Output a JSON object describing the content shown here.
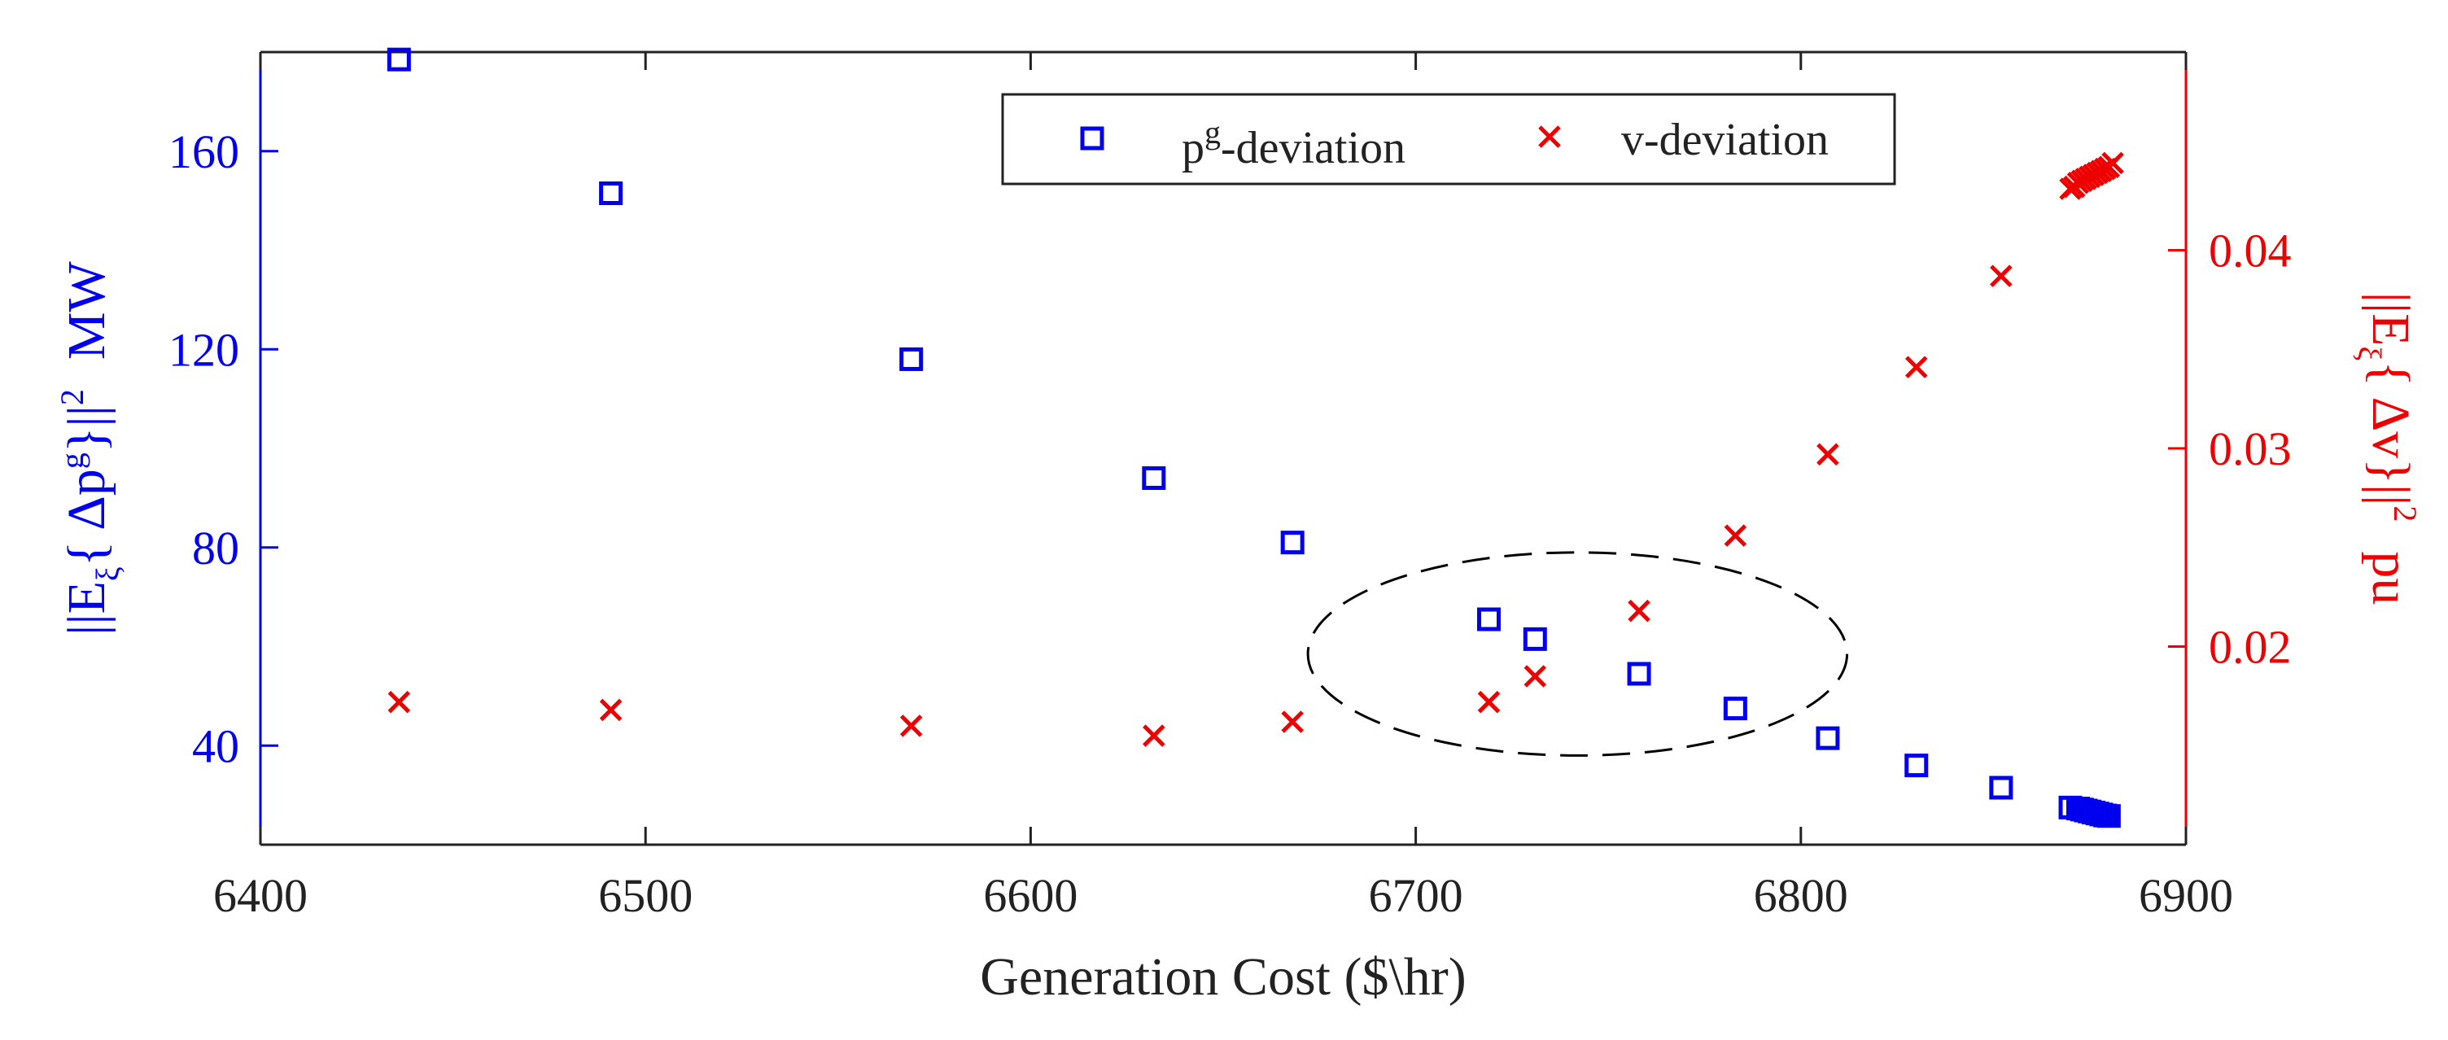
{
  "chart_data": {
    "type": "scatter",
    "xlabel": "Generation Cost ($\\hr)",
    "ylabel_left": {
      "prefix": "||E",
      "subscript": "ξ",
      "brace_open": "{ Δp",
      "superscript": "g",
      "brace_close": "}||",
      "power": "2",
      "unit": "MW"
    },
    "ylabel_right": {
      "prefix": "||E",
      "subscript": "ξ",
      "body": "{ Δv}||",
      "power": "2",
      "unit": "pu"
    },
    "xlim": [
      6400,
      6900
    ],
    "ylim_left": [
      20,
      180
    ],
    "ylim_right": [
      0.01,
      0.05
    ],
    "xticks": [
      6400,
      6500,
      6600,
      6700,
      6800,
      6900
    ],
    "xtick_labels": [
      "6400",
      "6500",
      "6600",
      "6700",
      "6800",
      "6900"
    ],
    "yticks_left": [
      40,
      80,
      120,
      160
    ],
    "ytick_labels_left": [
      "40",
      "80",
      "120",
      "160"
    ],
    "yticks_right": [
      0.02,
      0.03,
      0.04
    ],
    "ytick_labels_right": [
      "0.02",
      "0.03",
      "0.04"
    ],
    "grid": false,
    "legend_position": "top-right",
    "colors": {
      "pg": "#0000ee",
      "v": "#ee0000",
      "axis": "#222222",
      "annotation": "#000000"
    },
    "series": [
      {
        "name": "p^g-deviation",
        "legend_main": "p",
        "legend_sup": "g",
        "legend_rest": "-deviation",
        "marker": "square",
        "axis": "left",
        "x": [
          6436,
          6491,
          6569,
          6632,
          6668,
          6719,
          6731,
          6758,
          6783,
          6807,
          6830,
          6852,
          6870,
          6872,
          6873,
          6874,
          6875,
          6876,
          6877,
          6878,
          6879,
          6880
        ],
        "y": [
          178.5,
          151.5,
          118,
          94,
          81,
          65.5,
          61.5,
          54.5,
          47.5,
          41.5,
          36,
          31.5,
          27.5,
          27.3,
          27.1,
          26.9,
          26.7,
          26.5,
          26.3,
          26.1,
          25.9,
          25.8
        ]
      },
      {
        "name": "v-deviation",
        "legend_label": "v-deviation",
        "marker": "x",
        "axis": "right",
        "x": [
          6436,
          6491,
          6569,
          6632,
          6668,
          6719,
          6731,
          6758,
          6783,
          6807,
          6830,
          6852,
          6870,
          6871,
          6872,
          6873,
          6874,
          6875,
          6876,
          6877,
          6878,
          6879,
          6880,
          6881
        ],
        "y": [
          0.0172,
          0.0168,
          0.016,
          0.0155,
          0.0162,
          0.0172,
          0.0185,
          0.0218,
          0.0256,
          0.0297,
          0.0341,
          0.0387,
          0.0431,
          0.0432,
          0.0434,
          0.0435,
          0.0436,
          0.0437,
          0.0438,
          0.0439,
          0.044,
          0.0441,
          0.0442,
          0.0444
        ]
      }
    ],
    "annotation": {
      "type": "dashed-ellipse",
      "center_x": 6742,
      "center_y_left": 58.5,
      "radius_x_data": 70,
      "radius_y_left": 20.5
    }
  }
}
